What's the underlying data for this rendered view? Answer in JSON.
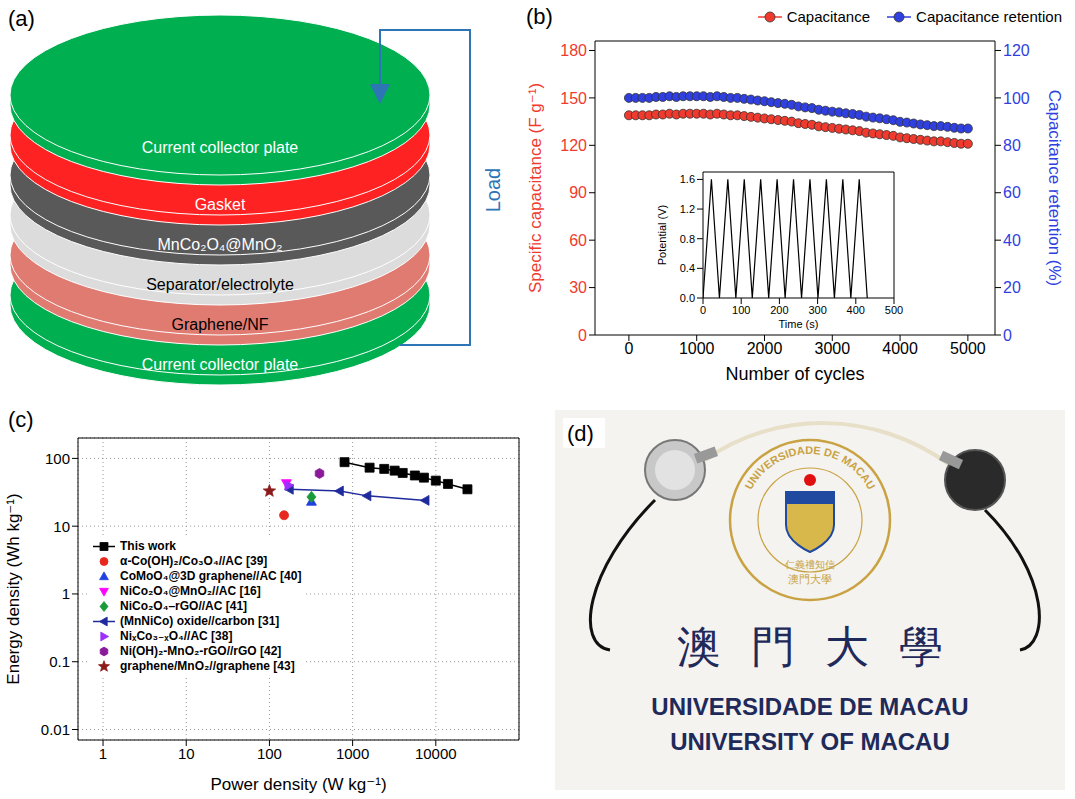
{
  "diagram": {
    "panel": "(a)",
    "layers": [
      {
        "label": "Current collector plate",
        "color": "#00b050"
      },
      {
        "label": "Gasket",
        "color": "#ff2222"
      },
      {
        "label": "MnCo₂O₄@MnO₂",
        "color": "#595959"
      },
      {
        "label": "Separator/electrolyte",
        "color": "#dcdcdc"
      },
      {
        "label": "Graphene/NF",
        "color": "#e07b72"
      },
      {
        "label": "Current collector plate",
        "color": "#00b050"
      }
    ],
    "load_label": "Load"
  },
  "chart_data": [
    {
      "panel": "(b)",
      "type": "scatter",
      "x_label": "Number of cycles",
      "y_label": "Specific capacitance (F g⁻¹)",
      "y2_label": "Capacitance retention (%)",
      "legend": "top right",
      "x": [
        0,
        100,
        200,
        300,
        400,
        500,
        600,
        700,
        800,
        900,
        1000,
        1100,
        1200,
        1300,
        1400,
        1500,
        1600,
        1700,
        1800,
        1900,
        2000,
        2100,
        2200,
        2300,
        2400,
        2500,
        2600,
        2700,
        2800,
        2900,
        3000,
        3100,
        3200,
        3300,
        3400,
        3500,
        3600,
        3700,
        3800,
        3900,
        4000,
        4100,
        4200,
        4300,
        4400,
        4500,
        4600,
        4700,
        4800,
        4900,
        5000
      ],
      "xlim": [
        -500,
        5400
      ],
      "xticks": [
        0,
        1000,
        2000,
        3000,
        4000,
        5000
      ],
      "ylim": [
        0,
        186
      ],
      "yticks": [
        0,
        30,
        60,
        90,
        120,
        150,
        180
      ],
      "y2lim": [
        0,
        124
      ],
      "y2ticks": [
        0,
        20,
        40,
        60,
        80,
        100,
        120
      ],
      "series": [
        {
          "name": "Capacitance",
          "color": "#f03a2e",
          "marker": "circle",
          "values": [
            139,
            139,
            139,
            139,
            139.5,
            139.5,
            140,
            139.5,
            140,
            140,
            140,
            140,
            139.5,
            140,
            139.5,
            139,
            139,
            138.5,
            138,
            137.5,
            137,
            136.5,
            136,
            135.5,
            135,
            134,
            133.5,
            133,
            132,
            131.5,
            131,
            130.5,
            130,
            129.5,
            129,
            128,
            127.5,
            127,
            126.5,
            126,
            125,
            124.5,
            124,
            123.5,
            123,
            122.5,
            122.5,
            122,
            121.5,
            121,
            121
          ]
        },
        {
          "name": "Capacitance retention",
          "color": "#2f3fe0",
          "marker": "circle",
          "axis": "y2",
          "values": [
            100,
            100,
            100,
            100,
            100.4,
            100.4,
            100.7,
            100.4,
            100.7,
            100.7,
            100.7,
            100.7,
            100.4,
            100.7,
            100.4,
            100,
            100,
            99.6,
            99.3,
            98.9,
            98.6,
            98.2,
            97.8,
            97.5,
            97.1,
            96.4,
            96,
            95.7,
            95,
            94.6,
            94.2,
            93.9,
            93.5,
            93.2,
            92.8,
            92.1,
            91.7,
            91.4,
            91,
            90.6,
            89.9,
            89.6,
            89.2,
            88.8,
            88.5,
            88.1,
            88.1,
            87.8,
            87.4,
            87.1,
            87.1
          ]
        }
      ]
    },
    {
      "type": "line",
      "x_label": "Time (s)",
      "y_label": "Potential (V)",
      "color": "#000000",
      "x": [
        0,
        22,
        43,
        65,
        86,
        108,
        129,
        151,
        172,
        194,
        215,
        237,
        258,
        280,
        301,
        323,
        344,
        366,
        387,
        409,
        430
      ],
      "values": [
        0,
        1.6,
        0,
        1.6,
        0,
        1.6,
        0,
        1.6,
        0,
        1.6,
        0,
        1.6,
        0,
        1.6,
        0,
        1.6,
        0,
        1.6,
        0,
        1.6,
        0
      ],
      "xlim": [
        0,
        500
      ],
      "xticks": [
        0,
        100,
        200,
        300,
        400,
        500
      ],
      "ylim": [
        0,
        1.7
      ],
      "yticks": [
        {
          "value": 0,
          "label": "0.0"
        },
        0.4,
        0.8,
        1.2,
        1.6
      ]
    },
    {
      "panel": "(c)",
      "type": "scatter",
      "log": true,
      "grid": true,
      "legend": "lower left",
      "x_label": "Power density (W kg⁻¹)",
      "y_label": "Energy density (Wh kg⁻¹)",
      "xlim": [
        0.5,
        100000
      ],
      "xticks": [
        1,
        10,
        100,
        1000,
        10000
      ],
      "ylim": [
        0.007,
        200
      ],
      "yticks": [
        0.01,
        0.1,
        1,
        10,
        100
      ],
      "series": [
        {
          "name": "This work",
          "color": "#000000",
          "marker": "square",
          "line_style": "solid",
          "x": [
            800,
            1600,
            2400,
            3200,
            4000,
            5600,
            7200,
            10000,
            14000,
            24000
          ],
          "values": [
            88,
            73,
            70,
            66,
            61,
            56,
            52,
            47,
            42,
            35
          ]
        },
        {
          "name": "α-Co(OH)₂/Co₃O₄//AC [39]",
          "color": "#e8281e",
          "marker": "circle",
          "x": [
            150
          ],
          "values": [
            14.5
          ]
        },
        {
          "name": "CoMoO₄@3D graphene//AC [40]",
          "color": "#2040e0",
          "marker": "triangle-up",
          "x": [
            320
          ],
          "values": [
            23
          ]
        },
        {
          "name": "NiCo₂O₄@MnO₂//AC [16]",
          "color": "#ff00ff",
          "marker": "triangle-down",
          "x": [
            160
          ],
          "values": [
            43
          ]
        },
        {
          "name": "NiCo₂O₄–rGO//AC [41]",
          "color": "#1a9a3a",
          "marker": "diamond",
          "x": [
            320
          ],
          "values": [
            27
          ]
        },
        {
          "name": "(MnNiCo) oxide//carbon [31]",
          "color": "#1f2b9c",
          "marker": "triangle-left",
          "line_style": "solid",
          "x": [
            175,
            700,
            1500,
            7500
          ],
          "values": [
            35,
            33,
            28,
            24
          ]
        },
        {
          "name": "NiₓCo₃₋ₓO₄//AC [38]",
          "color": "#9b30ff",
          "marker": "triangle-right",
          "x": [
            170
          ],
          "values": [
            40
          ]
        },
        {
          "name": "Ni(OH)₂-MnO₂-rGO//rGO [42]",
          "color": "#8b1a9b",
          "marker": "hexagon",
          "x": [
            400
          ],
          "values": [
            60
          ]
        },
        {
          "name": "graphene/MnO₂//graphene [43]",
          "color": "#8b1a1a",
          "marker": "star",
          "x": [
            100
          ],
          "values": [
            33
          ]
        }
      ]
    }
  ],
  "photo": {
    "panel": "(d)",
    "logo_arc": "UNIVERSIDADE DE MACAU",
    "logo_motto": "仁義禮知信",
    "logo_name": "澳門大學",
    "name_zh": "澳門大學",
    "name_pt": "UNIVERSIDADE DE MACAU",
    "name_en": "UNIVERSITY OF MACAU"
  }
}
